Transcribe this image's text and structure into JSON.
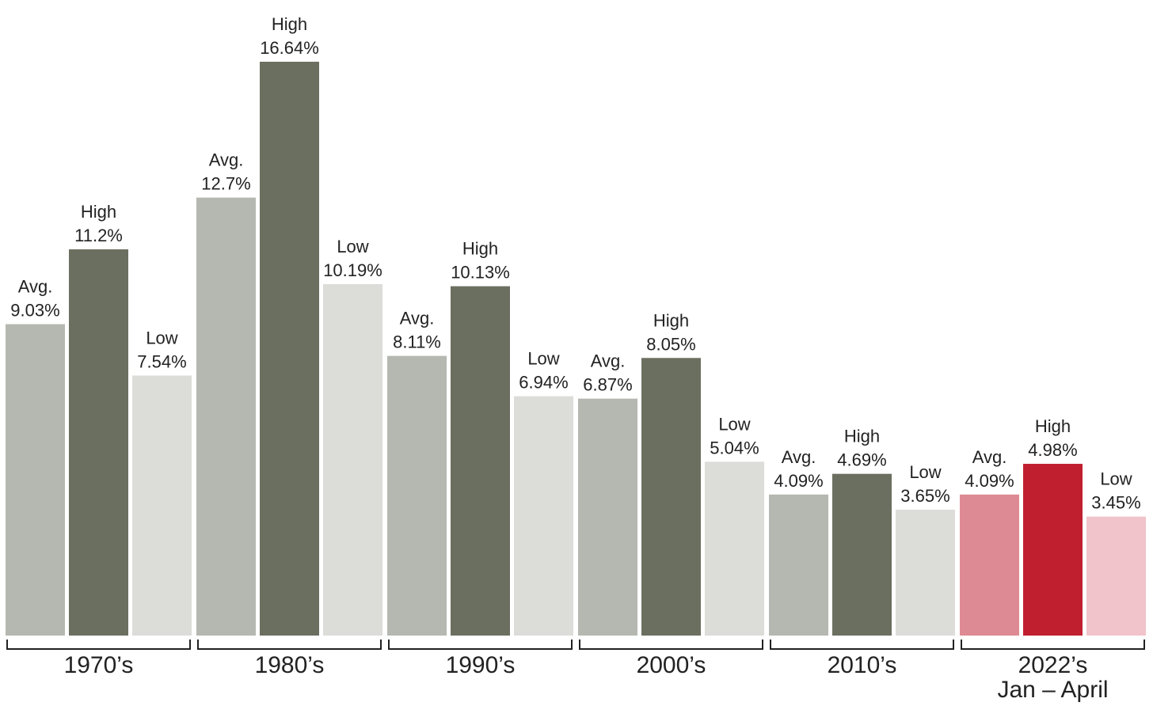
{
  "chart_data": {
    "type": "bar",
    "categories": [
      "1970’s",
      "1980’s",
      "1990’s",
      "2000’s",
      "2010’s",
      "2022’s\nJan – April"
    ],
    "series": [
      {
        "name": "Avg.",
        "colors": [
          "#b5b8b0",
          "#b5b8b0",
          "#b5b8b0",
          "#b5b8b0",
          "#b5b8b0",
          "#de8a94"
        ],
        "values": [
          9.03,
          12.7,
          8.11,
          6.87,
          4.09,
          4.09
        ],
        "value_labels": [
          "9.03%",
          "12.7%",
          "8.11%",
          "6.87%",
          "4.09%",
          "4.09%"
        ]
      },
      {
        "name": "High",
        "colors": [
          "#6b6f60",
          "#6b6f60",
          "#6b6f60",
          "#6b6f60",
          "#6b6f60",
          "#c01f2f"
        ],
        "values": [
          11.2,
          16.64,
          10.13,
          8.05,
          4.69,
          4.98
        ],
        "value_labels": [
          "11.2%",
          "16.64%",
          "10.13%",
          "8.05%",
          "4.69%",
          "4.98%"
        ]
      },
      {
        "name": "Low",
        "colors": [
          "#dcdcd8",
          "#dcdcd8",
          "#dcdcd8",
          "#dcdcd8",
          "#dcdcd8",
          "#f0c4ca"
        ],
        "values": [
          7.54,
          10.19,
          6.94,
          5.04,
          3.65,
          3.45
        ],
        "value_labels": [
          "7.54%",
          "10.19%",
          "6.94%",
          "5.04%",
          "3.65%",
          "3.45%"
        ]
      }
    ]
  }
}
